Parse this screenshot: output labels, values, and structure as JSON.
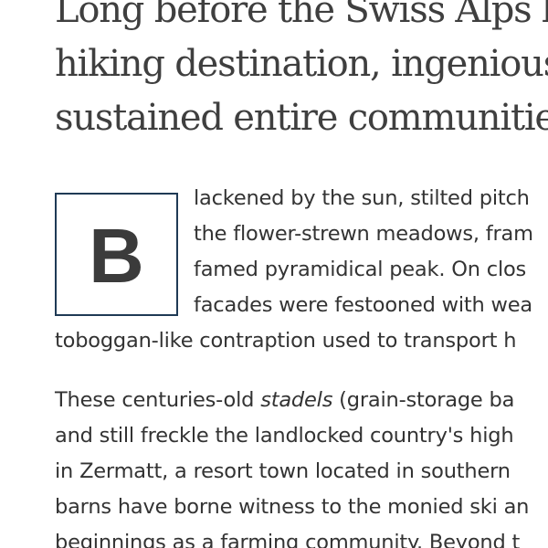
{
  "headline": {
    "lines": [
      "Long before the Swiss Alps bec",
      "hiking destination, ingeniously",
      "sustained entire communities."
    ]
  },
  "article": {
    "drop_cap": "B",
    "paragraph1": {
      "lines": [
        "lackened by the sun, stilted pitch",
        "the flower-strewn meadows, fram",
        "famed pyramidical peak. On clos",
        "facades were festooned with wea",
        "toboggan-like contraption used to transport h"
      ]
    },
    "paragraph2": {
      "line1_before": "These centuries-old ",
      "line1_italic": "stadels",
      "line1_after": " (grain-storage ba",
      "lines": [
        "and still freckle the landlocked country's high",
        "in Zermatt, a resort town located in southern",
        "barns have borne witness to the monied ski an",
        "beginnings as a farming community. Beyond t"
      ]
    }
  }
}
